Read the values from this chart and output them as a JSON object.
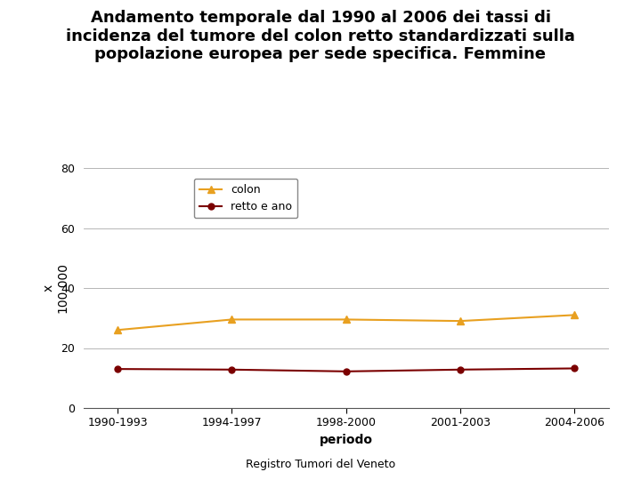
{
  "title_line1": "Andamento temporale dal 1990 al 2006 dei tassi di",
  "title_line2": "incidenza del tumore del colon retto standardizzati sulla",
  "title_line3": "popolazione europea per sede specifica. Femmine",
  "xlabel": "periodo",
  "ylabel": "x\n100,000",
  "categories": [
    "1990-1993",
    "1994-1997",
    "1998-2000",
    "2001-2003",
    "2004-2006"
  ],
  "colon_values": [
    26.0,
    29.5,
    29.5,
    29.0,
    31.0
  ],
  "retto_values": [
    13.0,
    12.8,
    12.2,
    12.8,
    13.2
  ],
  "colon_color": "#E8A020",
  "retto_color": "#7B0000",
  "ylim": [
    0,
    80
  ],
  "yticks": [
    0,
    20,
    40,
    60,
    80
  ],
  "ytick_labels": [
    "0",
    "20",
    "40",
    "60",
    "80"
  ],
  "legend_colon": "colon",
  "legend_retto": "retto e ano",
  "footnote": "Registro Tumori del Veneto",
  "bg_color": "#ffffff",
  "title_fontsize": 13,
  "axis_label_fontsize": 10,
  "tick_fontsize": 9,
  "footnote_fontsize": 9,
  "legend_fontsize": 9
}
